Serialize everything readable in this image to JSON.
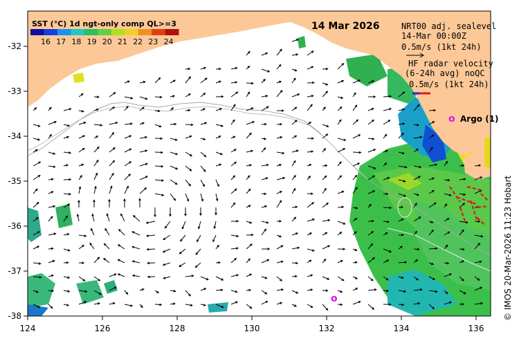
{
  "map": {
    "date": "14 Mar 2026",
    "sst_legend": {
      "title": "SST (°C) 1d ngt-only comp QL>=3",
      "ticks": [
        "16",
        "17",
        "18",
        "19",
        "20",
        "21",
        "22",
        "23",
        "24"
      ],
      "colors": [
        "#1010a0",
        "#1040e0",
        "#1890f0",
        "#20c8c0",
        "#28c060",
        "#60d040",
        "#b0e020",
        "#f0d020",
        "#f09020",
        "#e04010",
        "#b01010"
      ]
    },
    "sealevel_info": {
      "line1": "NRT00 adj. sealevel",
      "line2": "14-Mar 00:00Z",
      "line3": "0.5m/s (1kt 24h)"
    },
    "radar_info": {
      "line1": "HF radar velocity",
      "line2": "(6-24h avg) noQC",
      "line3": "0.5m/s (1kt 24h)"
    },
    "argo": {
      "marker": "o",
      "label": "Argo (1)"
    },
    "credit": "© IMOS 20-Mar-2026 11:23 Hobart",
    "x_ticks": [
      "124",
      "126",
      "128",
      "130",
      "132",
      "134",
      "136"
    ],
    "y_ticks": [
      "-32",
      "-33",
      "-34",
      "-35",
      "-36",
      "-37",
      "-38"
    ],
    "colors": {
      "land": "#fcc898",
      "ocean": "#ffffff",
      "arrow": "#000000",
      "radar": "#e01818",
      "argo": "#e010e0"
    }
  }
}
